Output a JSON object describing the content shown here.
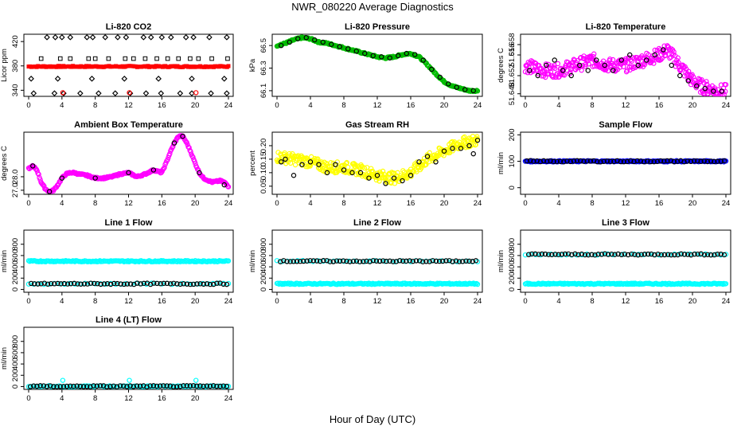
{
  "figure": {
    "title": "NWR_080220  Average Diagnostics",
    "xlabel": "Hour of Day (UTC)",
    "x_ticks": [
      0,
      4,
      8,
      12,
      16,
      20,
      24
    ]
  },
  "chart_data": [
    {
      "id": "co2",
      "type": "scatter",
      "title": "Li-820 CO2",
      "ylabel": "Licor ppm",
      "xlim": [
        0,
        24
      ],
      "ylim": [
        330,
        432
      ],
      "yticks": [
        "340",
        "380",
        "420"
      ],
      "yticks_values": [
        340,
        380,
        420
      ],
      "series": [
        {
          "name": "levels",
          "color": "#000000",
          "marker": "open-diamond",
          "x": [
            2.2,
            3.2,
            4.0,
            5.0,
            7.0,
            7.7,
            9.2,
            10.7,
            11.7,
            13.8,
            14.7,
            16.0,
            17.1,
            18.9,
            19.8,
            21.7,
            23.8
          ],
          "y": [
            427,
            427,
            427,
            427,
            427,
            427,
            427,
            427,
            427,
            427,
            427,
            427,
            427,
            427,
            427,
            427,
            427
          ]
        },
        {
          "name": "mid",
          "color": "#000000",
          "marker": "open-square",
          "x": [
            1.5,
            3.8,
            5.0,
            7.2,
            8.0,
            9.6,
            11.6,
            12.6,
            14.0,
            15.4,
            16.7,
            18.0,
            19.4,
            20.4,
            22.0,
            23.9
          ],
          "y": [
            392,
            392,
            392,
            392,
            392,
            392,
            392,
            392,
            392,
            392,
            392,
            392,
            392,
            392,
            392,
            392
          ]
        },
        {
          "name": "low",
          "color": "#000000",
          "marker": "open-diamond",
          "x": [
            0.6,
            3.1,
            4.2,
            6.2,
            8.4,
            10.4,
            12.2,
            14.1,
            15.9,
            18.2,
            19.6,
            21.9,
            23.8
          ],
          "y": [
            335,
            335,
            335,
            335,
            335,
            335,
            335,
            335,
            335,
            335,
            335,
            335,
            335
          ]
        },
        {
          "name": "sub-mid",
          "color": "#000000",
          "marker": "open-diamond",
          "x": [
            0.3,
            3.5,
            7.6,
            11.5,
            15.6,
            19.6,
            23.5
          ],
          "y": [
            359,
            359,
            359,
            359,
            359,
            359,
            359
          ]
        },
        {
          "name": "sample",
          "color": "#ff0000",
          "marker": "filled-square",
          "x_range": [
            0.0,
            24.0
          ],
          "count": 150,
          "value": 379
        },
        {
          "name": "reference",
          "color": "#ff0000",
          "marker": "open-circle",
          "x": [
            4.1,
            12.1,
            20.1
          ],
          "y": [
            336,
            336,
            336
          ]
        }
      ]
    },
    {
      "id": "pressure",
      "type": "line",
      "title": "Li-820 Pressure",
      "ylabel": "kPa",
      "xlim": [
        0,
        24
      ],
      "ylim": [
        66.05,
        66.6
      ],
      "yticks": [
        "66.1",
        "66.3",
        "66.5"
      ],
      "yticks_values": [
        66.1,
        66.3,
        66.5
      ],
      "series": [
        {
          "name": "all",
          "color": "#00bb00",
          "x": [
            0,
            1,
            2,
            3,
            4,
            5,
            6,
            7,
            8,
            9,
            10,
            11,
            12,
            13,
            14,
            15,
            16,
            17,
            18,
            19,
            20,
            21,
            22,
            23,
            24
          ],
          "y": [
            66.5,
            66.52,
            66.55,
            66.57,
            66.56,
            66.53,
            66.52,
            66.5,
            66.48,
            66.46,
            66.44,
            66.42,
            66.4,
            66.39,
            66.4,
            66.42,
            66.43,
            66.4,
            66.33,
            66.25,
            66.18,
            66.14,
            66.12,
            66.1,
            66.1
          ]
        },
        {
          "name": "averages",
          "color": "#000000",
          "x": [
            0.5,
            1.5,
            2.5,
            3.5,
            4.5,
            5.5,
            6.5,
            7.5,
            8.5,
            9.5,
            10.5,
            11.5,
            12.5,
            13.5,
            14.5,
            15.5,
            16.5,
            17.5,
            18.5,
            19.5,
            20.5,
            21.5,
            22.5,
            23.5
          ],
          "y": [
            66.5,
            66.53,
            66.56,
            66.57,
            66.55,
            66.53,
            66.51,
            66.49,
            66.47,
            66.45,
            66.43,
            66.41,
            66.4,
            66.39,
            66.41,
            66.43,
            66.42,
            66.37,
            66.29,
            66.22,
            66.16,
            66.13,
            66.11,
            66.1
          ]
        }
      ]
    },
    {
      "id": "licor_temp",
      "type": "scatter",
      "title": "Li-820 Temperature",
      "ylabel": "degrees C",
      "xlim": [
        0,
        24
      ],
      "ylim": [
        51.648,
        51.66
      ],
      "yticks": [
        "51.648",
        "51.652",
        "51.656",
        "51.658"
      ],
      "yticks_values": [
        51.6485,
        51.652,
        51.656,
        51.658
      ],
      "series": [
        {
          "name": "all",
          "color": "#ff00ff",
          "x": [
            0,
            2,
            4,
            6,
            8,
            10,
            12,
            14,
            16,
            17,
            18,
            19,
            20,
            21,
            22,
            23,
            24
          ],
          "y": [
            51.654,
            51.653,
            51.653,
            51.654,
            51.655,
            51.654,
            51.654,
            51.655,
            51.656,
            51.657,
            51.655,
            51.653,
            51.651,
            51.65,
            51.6495,
            51.649,
            51.649
          ]
        },
        {
          "name": "averages",
          "color": "#000000",
          "x": [
            0.5,
            1.5,
            2.5,
            3.5,
            4.5,
            5.5,
            6.5,
            7.5,
            8.5,
            9.5,
            10.5,
            11.5,
            12.5,
            13.5,
            14.5,
            15.5,
            16.5,
            17.5,
            18.5,
            19.5,
            20.5,
            21.5,
            22.5,
            23.5
          ],
          "y": [
            51.653,
            51.652,
            51.654,
            51.655,
            51.653,
            51.652,
            51.654,
            51.653,
            51.655,
            51.654,
            51.653,
            51.655,
            51.656,
            51.654,
            51.655,
            51.656,
            51.657,
            51.654,
            51.652,
            51.651,
            51.65,
            51.6495,
            51.649,
            51.649
          ]
        }
      ]
    },
    {
      "id": "box_temp",
      "type": "line",
      "title": "Ambient Box Temperature",
      "ylabel": "degrees C",
      "xlim": [
        0,
        24
      ],
      "ylim": [
        26.7,
        31.3
      ],
      "yticks": [
        "27.0",
        "28.0"
      ],
      "yticks_values": [
        27.0,
        28.0
      ],
      "series": [
        {
          "name": "all",
          "color": "#ff00ff",
          "x": [
            0,
            0.5,
            1,
            1.5,
            2,
            2.5,
            3,
            3.5,
            4,
            4.5,
            5,
            5.5,
            6,
            7,
            8,
            9,
            10,
            11,
            12,
            13,
            14,
            15,
            16,
            16.5,
            17,
            17.5,
            18,
            18.5,
            19,
            19.5,
            20,
            20.5,
            21,
            22,
            23,
            23.5,
            24
          ],
          "y": [
            28.6,
            28.8,
            28.5,
            27.6,
            27.1,
            26.9,
            27.0,
            27.4,
            27.9,
            28.2,
            28.3,
            28.3,
            28.2,
            28.1,
            27.9,
            27.9,
            28.0,
            28.2,
            28.3,
            28.0,
            28.2,
            28.5,
            28.3,
            29.0,
            29.8,
            30.5,
            31.0,
            31.0,
            30.5,
            29.8,
            29.0,
            28.3,
            27.9,
            27.6,
            27.7,
            27.6,
            27.3
          ]
        },
        {
          "name": "averages",
          "color": "#000000",
          "x": [
            0.5,
            2.5,
            4.0,
            8.0,
            12.0,
            15.0,
            17.5,
            18.5,
            20.5,
            23.5
          ],
          "y": [
            28.8,
            26.9,
            27.9,
            27.9,
            28.3,
            28.5,
            30.5,
            31.0,
            28.3,
            27.4
          ]
        }
      ]
    },
    {
      "id": "rh",
      "type": "scatter",
      "title": "Gas Stream RH",
      "ylabel": "percent",
      "xlim": [
        0,
        24
      ],
      "ylim": [
        0.02,
        0.25
      ],
      "yticks": [
        "0.05",
        "0.10",
        "0.15",
        "0.20"
      ],
      "yticks_values": [
        0.05,
        0.1,
        0.15,
        0.2
      ],
      "series": [
        {
          "name": "all",
          "color": "#ffff00",
          "x": [
            0,
            2,
            4,
            6,
            8,
            10,
            12,
            14,
            16,
            18,
            20,
            22,
            24
          ],
          "y": [
            0.16,
            0.15,
            0.14,
            0.12,
            0.12,
            0.11,
            0.09,
            0.08,
            0.1,
            0.15,
            0.18,
            0.21,
            0.22
          ]
        },
        {
          "name": "averages",
          "color": "#000000",
          "x": [
            0.5,
            1,
            2,
            3,
            4,
            5,
            6,
            7,
            8,
            9,
            10,
            11,
            12,
            13,
            14,
            15,
            16,
            17,
            18,
            19,
            20,
            21,
            22,
            23,
            23.5,
            24
          ],
          "y": [
            0.14,
            0.15,
            0.09,
            0.13,
            0.14,
            0.13,
            0.1,
            0.13,
            0.11,
            0.1,
            0.1,
            0.08,
            0.09,
            0.06,
            0.08,
            0.07,
            0.09,
            0.14,
            0.16,
            0.14,
            0.18,
            0.19,
            0.19,
            0.2,
            0.17,
            0.22
          ]
        }
      ]
    },
    {
      "id": "sample_flow",
      "type": "scatter",
      "title": "Sample Flow",
      "ylabel": "ml/min",
      "xlim": [
        0,
        24
      ],
      "ylim": [
        -25,
        210
      ],
      "yticks": [
        "0",
        "100",
        "200"
      ],
      "yticks_values": [
        0,
        100,
        200
      ],
      "series": [
        {
          "name": "all",
          "color": "#0000ff",
          "x_range": [
            0.0,
            24.0
          ],
          "count": 200,
          "value": 100
        },
        {
          "name": "averages",
          "color": "#000000",
          "x_range": [
            0.2,
            23.8
          ],
          "count": 60,
          "value": 100
        }
      ]
    },
    {
      "id": "line1",
      "type": "scatter",
      "title": "Line 1 Flow",
      "ylabel": "ml/min",
      "xlim": [
        0,
        24
      ],
      "ylim": [
        -50,
        1050
      ],
      "yticks": [
        "0",
        "200",
        "400",
        "600",
        "800"
      ],
      "yticks_values": [
        0,
        200,
        400,
        600,
        800
      ],
      "series": [
        {
          "name": "sampling",
          "color": "#00ffff",
          "x_range": [
            0.0,
            24.0
          ],
          "count": 200,
          "value": 500
        },
        {
          "name": "background",
          "color": "#00ffff",
          "x_range": [
            0.0,
            24.0
          ],
          "count": 40,
          "value": 100
        },
        {
          "name": "averages",
          "color": "#000000",
          "x_range": [
            0.3,
            23.8
          ],
          "count": 60,
          "value": 100
        }
      ]
    },
    {
      "id": "line2",
      "type": "scatter",
      "title": "Line 2 Flow",
      "ylabel": "ml/min",
      "xlim": [
        0,
        24
      ],
      "ylim": [
        -50,
        1050
      ],
      "yticks": [
        "0",
        "200",
        "400",
        "600",
        "800"
      ],
      "yticks_values": [
        0,
        200,
        400,
        600,
        800
      ],
      "series": [
        {
          "name": "background",
          "color": "#00ffff",
          "x_range": [
            0.0,
            24.0
          ],
          "count": 200,
          "value": 100
        },
        {
          "name": "sampling",
          "color": "#00ffff",
          "x_range": [
            0.0,
            24.0
          ],
          "count": 40,
          "value": 500
        },
        {
          "name": "averages",
          "color": "#000000",
          "x_range": [
            0.4,
            23.8
          ],
          "count": 60,
          "value": 500
        }
      ]
    },
    {
      "id": "line3",
      "type": "scatter",
      "title": "Line 3 Flow",
      "ylabel": "ml/min",
      "xlim": [
        0,
        24
      ],
      "ylim": [
        -50,
        1050
      ],
      "yticks": [
        "0",
        "200",
        "400",
        "600",
        "800"
      ],
      "yticks_values": [
        0,
        200,
        400,
        600,
        800
      ],
      "series": [
        {
          "name": "background",
          "color": "#00ffff",
          "x_range": [
            0.0,
            24.0
          ],
          "count": 200,
          "value": 100
        },
        {
          "name": "sampling",
          "color": "#00ffff",
          "x_range": [
            0.0,
            24.0
          ],
          "count": 40,
          "value": 620
        },
        {
          "name": "averages",
          "color": "#000000",
          "x_range": [
            0.4,
            23.8
          ],
          "count": 60,
          "value": 620
        }
      ]
    },
    {
      "id": "line4",
      "type": "scatter",
      "title": "Line 4 (LT) Flow",
      "ylabel": "ml/min",
      "xlim": [
        0,
        24
      ],
      "ylim": [
        -50,
        1050
      ],
      "yticks": [
        "0",
        "200",
        "400",
        "600",
        "800"
      ],
      "yticks_values": [
        0,
        200,
        400,
        600,
        800
      ],
      "series": [
        {
          "name": "all",
          "color": "#00ffff",
          "x_range": [
            0.0,
            24.0
          ],
          "count": 80,
          "value": 5
        },
        {
          "name": "spikes",
          "color": "#00ffff",
          "x": [
            4.1,
            12.1,
            20.1
          ],
          "y": [
            110,
            110,
            110
          ]
        },
        {
          "name": "averages",
          "color": "#000000",
          "x_range": [
            0.2,
            23.8
          ],
          "count": 60,
          "value": 5
        }
      ]
    }
  ]
}
